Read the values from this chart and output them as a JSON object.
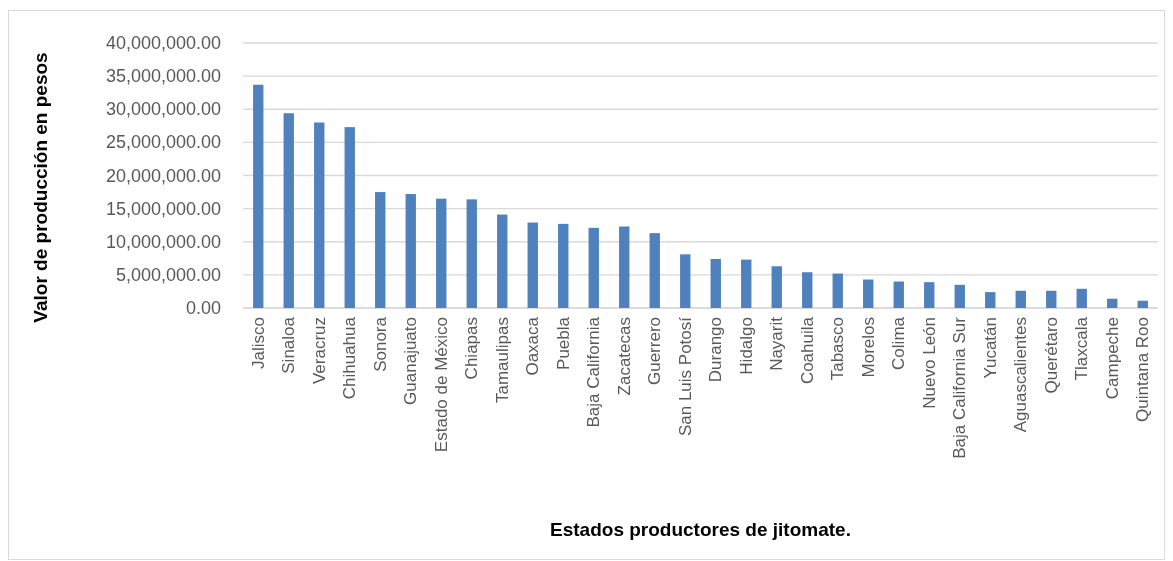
{
  "chart_data": {
    "type": "bar",
    "xlabel": "Estados productores de jitomate.",
    "ylabel": "Valor de producción en pesos",
    "categories": [
      "Jalisco",
      "Sinaloa",
      "Veracruz",
      "Chihuahua",
      "Sonora",
      "Guanajuato",
      "Estado de México",
      "Chiapas",
      "Tamaulipas",
      "Oaxaca",
      "Puebla",
      "Baja California",
      "Zacatecas",
      "Guerrero",
      "San Luis Potosí",
      "Durango",
      "Hidalgo",
      "Nayarit",
      "Coahuila",
      "Tabasco",
      "Morelos",
      "Colima",
      "Nuevo León",
      "Baja California Sur",
      "Yucatán",
      "Aguascalientes",
      "Querétaro",
      "Tlaxcala",
      "Campeche",
      "Quintana Roo"
    ],
    "values": [
      33700000,
      29400000,
      28000000,
      27300000,
      17500000,
      17200000,
      16500000,
      16400000,
      14100000,
      12900000,
      12700000,
      12100000,
      12300000,
      11300000,
      8100000,
      7400000,
      7300000,
      6300000,
      5400000,
      5200000,
      4300000,
      4000000,
      3900000,
      3500000,
      2400000,
      2600000,
      2600000,
      2900000,
      1400000,
      1100000
    ],
    "color": "#4f81bd",
    "ylim": [
      0,
      40000000
    ],
    "yticks": [
      {
        "value": 0,
        "label": "0.00"
      },
      {
        "value": 5000000,
        "label": "5,000,000.00"
      },
      {
        "value": 10000000,
        "label": "10,000,000.00"
      },
      {
        "value": 15000000,
        "label": "15,000,000.00"
      },
      {
        "value": 20000000,
        "label": "20,000,000.00"
      },
      {
        "value": 25000000,
        "label": "25,000,000.00"
      },
      {
        "value": 30000000,
        "label": "30,000,000.00"
      },
      {
        "value": 35000000,
        "label": "35,000,000.00"
      },
      {
        "value": 40000000,
        "label": "40,000,000.00"
      }
    ],
    "grid": "y"
  }
}
